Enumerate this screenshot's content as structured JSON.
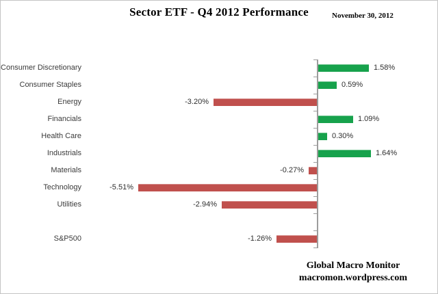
{
  "header": {
    "title": "Sector ETF - Q4 2012 Performance",
    "date": "November 30, 2012"
  },
  "footer": {
    "line1": "Global Macro Monitor",
    "line2": "macromon.wordpress.com"
  },
  "chart_data": {
    "type": "bar",
    "orientation": "horizontal",
    "title": "Sector ETF - Q4 2012 Performance",
    "date_annotation": "November 30, 2012",
    "categories": [
      "Consumer Discretionary",
      "Consumer Staples",
      "Energy",
      "Financials",
      "Health Care",
      "Industrials",
      "Materials",
      "Technology",
      "Utilities",
      "",
      "S&P500"
    ],
    "values": [
      1.58,
      0.59,
      -3.2,
      1.09,
      0.3,
      1.64,
      -0.27,
      -5.51,
      -2.94,
      null,
      -1.26
    ],
    "value_labels": [
      "1.58%",
      "0.59%",
      "-3.20%",
      "1.09%",
      "0.30%",
      "1.64%",
      "-0.27%",
      "-5.51%",
      "-2.94%",
      "",
      "-1.26%"
    ],
    "positive_color": "#17a24c",
    "negative_color": "#c0504d",
    "axis_color": "#9c9c9c",
    "value_axis_visible": false,
    "gridlines": false,
    "legend": "none",
    "xlim_estimate": [
      -6.0,
      2.0
    ]
  }
}
